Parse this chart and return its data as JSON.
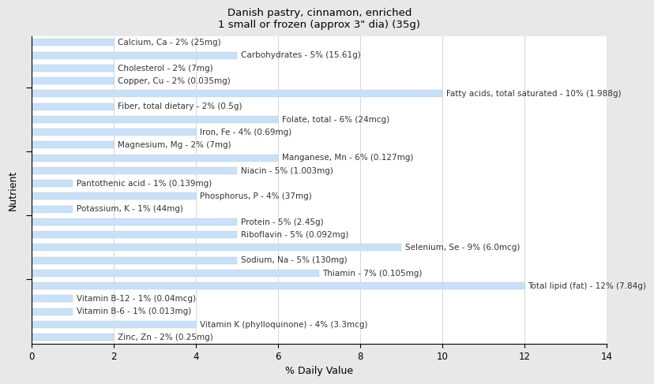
{
  "title": "Danish pastry, cinnamon, enriched\n1 small or frozen (approx 3\" dia) (35g)",
  "xlabel": "% Daily Value",
  "ylabel": "Nutrient",
  "xlim": [
    0,
    14
  ],
  "xticks": [
    0,
    2,
    4,
    6,
    8,
    10,
    12,
    14
  ],
  "bar_color": "#c9e0f7",
  "bar_edge_color": "#b8cfe8",
  "background_color": "#e8e8e8",
  "plot_background": "#ffffff",
  "nutrients": [
    {
      "label": "Calcium, Ca - 2% (25mg)",
      "value": 2
    },
    {
      "label": "Carbohydrates - 5% (15.61g)",
      "value": 5
    },
    {
      "label": "Cholesterol - 2% (7mg)",
      "value": 2
    },
    {
      "label": "Copper, Cu - 2% (0.035mg)",
      "value": 2
    },
    {
      "label": "Fatty acids, total saturated - 10% (1.988g)",
      "value": 10
    },
    {
      "label": "Fiber, total dietary - 2% (0.5g)",
      "value": 2
    },
    {
      "label": "Folate, total - 6% (24mcg)",
      "value": 6
    },
    {
      "label": "Iron, Fe - 4% (0.69mg)",
      "value": 4
    },
    {
      "label": "Magnesium, Mg - 2% (7mg)",
      "value": 2
    },
    {
      "label": "Manganese, Mn - 6% (0.127mg)",
      "value": 6
    },
    {
      "label": "Niacin - 5% (1.003mg)",
      "value": 5
    },
    {
      "label": "Pantothenic acid - 1% (0.139mg)",
      "value": 1
    },
    {
      "label": "Phosphorus, P - 4% (37mg)",
      "value": 4
    },
    {
      "label": "Potassium, K - 1% (44mg)",
      "value": 1
    },
    {
      "label": "Protein - 5% (2.45g)",
      "value": 5
    },
    {
      "label": "Riboflavin - 5% (0.092mg)",
      "value": 5
    },
    {
      "label": "Selenium, Se - 9% (6.0mcg)",
      "value": 9
    },
    {
      "label": "Sodium, Na - 5% (130mg)",
      "value": 5
    },
    {
      "label": "Thiamin - 7% (0.105mg)",
      "value": 7
    },
    {
      "label": "Total lipid (fat) - 12% (7.84g)",
      "value": 12
    },
    {
      "label": "Vitamin B-12 - 1% (0.04mcg)",
      "value": 1
    },
    {
      "label": "Vitamin B-6 - 1% (0.013mg)",
      "value": 1
    },
    {
      "label": "Vitamin K (phylloquinone) - 4% (3.3mcg)",
      "value": 4
    },
    {
      "label": "Zinc, Zn - 2% (0.25mg)",
      "value": 2
    }
  ],
  "title_fontsize": 9.5,
  "axis_label_fontsize": 9,
  "tick_fontsize": 8.5,
  "bar_label_fontsize": 7.5
}
